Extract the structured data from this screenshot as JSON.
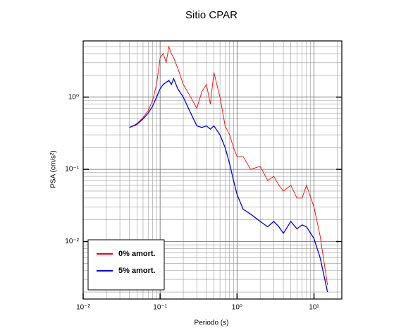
{
  "chart_data": {
    "type": "line",
    "title": "Sitio CPAR",
    "x_label": "Periodo (s)",
    "y_label": "PSA (cm/s²)",
    "x": [
      0.04,
      0.05,
      0.06,
      0.07,
      0.08,
      0.09,
      0.1,
      0.11,
      0.12,
      0.13,
      0.14,
      0.15,
      0.17,
      0.2,
      0.25,
      0.3,
      0.35,
      0.4,
      0.45,
      0.5,
      0.6,
      0.7,
      0.8,
      0.9,
      1,
      1.2,
      1.5,
      2,
      2.5,
      3,
      3.5,
      4,
      5,
      6,
      7,
      8,
      10,
      12,
      15
    ],
    "series": [
      {
        "name": "0% amort.",
        "color": "#ff0000",
        "values": [
          0.38,
          0.43,
          0.52,
          0.65,
          0.9,
          1.5,
          3.5,
          4,
          3.0,
          5,
          4,
          3.5,
          2.5,
          1.5,
          1.0,
          0.7,
          1.2,
          1.5,
          0.8,
          2.2,
          1.0,
          0.4,
          0.3,
          0.2,
          0.15,
          0.15,
          0.1,
          0.11,
          0.07,
          0.08,
          0.06,
          0.05,
          0.06,
          0.04,
          0.04,
          0.06,
          0.03,
          0.012,
          0.0025
        ]
      },
      {
        "name": "5% amort.",
        "color": "#0000ff",
        "values": [
          0.38,
          0.42,
          0.5,
          0.6,
          0.75,
          1.0,
          1.3,
          1.5,
          1.6,
          1.7,
          1.5,
          1.8,
          1.3,
          1.0,
          0.6,
          0.4,
          0.38,
          0.4,
          0.36,
          0.4,
          0.3,
          0.2,
          0.12,
          0.07,
          0.045,
          0.028,
          0.024,
          0.019,
          0.016,
          0.019,
          0.016,
          0.013,
          0.019,
          0.015,
          0.017,
          0.016,
          0.011,
          0.006,
          0.002
        ]
      }
    ],
    "log_x": true,
    "log_y": true,
    "xlim": [
      0.01,
      23
    ],
    "ylim": [
      0.0016,
      6
    ],
    "xticks": [
      {
        "value": 0.01,
        "label": "10⁻²"
      },
      {
        "value": 0.1,
        "label": "10⁻¹"
      },
      {
        "value": 1,
        "label": "10⁰"
      },
      {
        "value": 10,
        "label": "10¹"
      }
    ],
    "yticks": [
      {
        "value": 0.01,
        "label": "10⁻²"
      },
      {
        "value": 0.1,
        "label": "10⁻¹"
      },
      {
        "value": 1,
        "label": "10⁰"
      }
    ],
    "grid": "both",
    "legend": "lower left"
  }
}
